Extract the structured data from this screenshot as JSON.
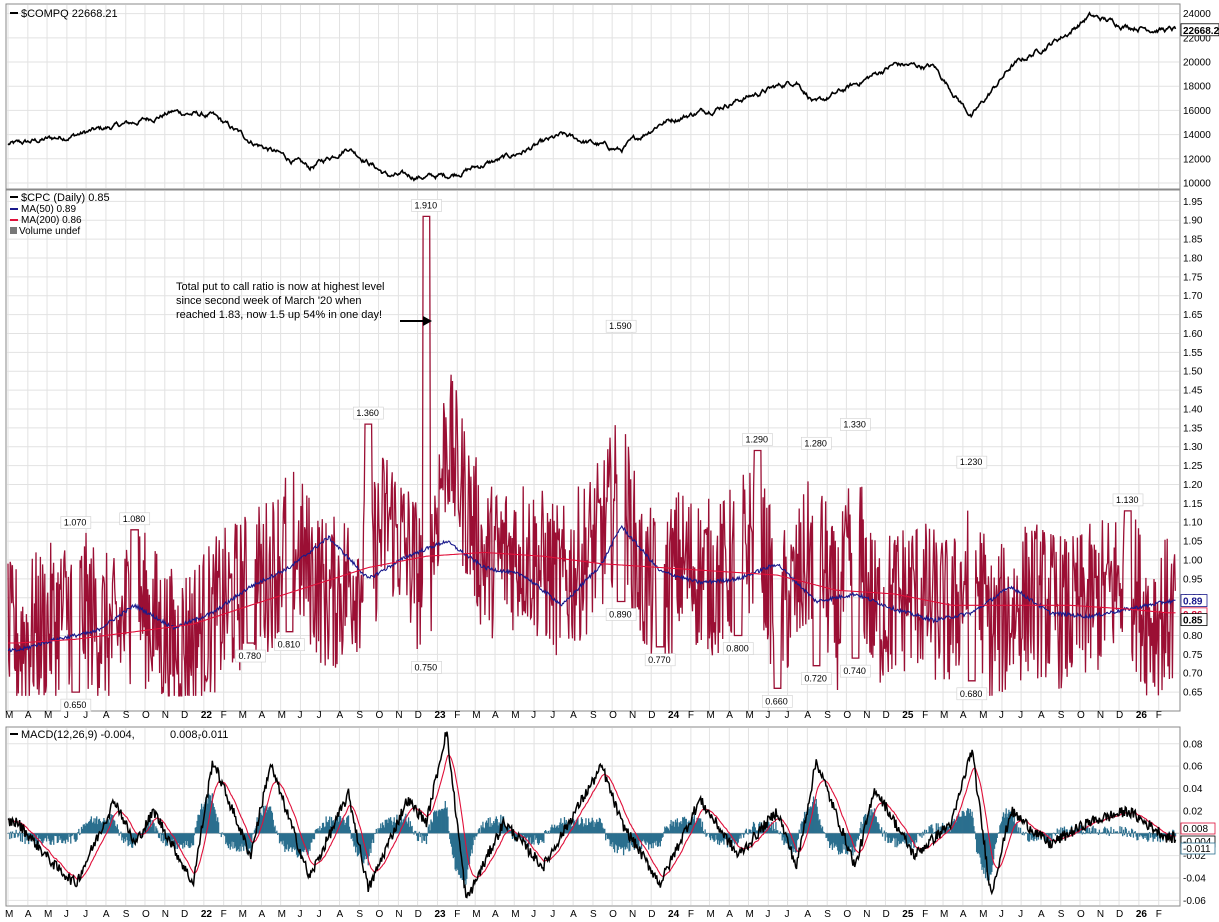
{
  "chart_data": [
    {
      "type": "line",
      "legend": "$COMPQ 22668.21",
      "last_value_label": "22668.2",
      "ylim": [
        9500,
        24800
      ],
      "y_ticks": [
        "10000",
        "12000",
        "14000",
        "16000",
        "18000",
        "20000",
        "22000",
        "24000"
      ],
      "series": [
        {
          "name": "$COMPQ",
          "x": [
            "2021-03",
            "2021-06",
            "2021-09",
            "2021-11",
            "2022-01",
            "2022-03",
            "2022-06",
            "2022-08",
            "2022-10",
            "2022-12",
            "2023-01",
            "2023-04",
            "2023-07",
            "2023-10",
            "2023-12",
            "2024-03",
            "2024-07",
            "2024-08",
            "2024-12",
            "2025-02",
            "2025-04",
            "2025-06",
            "2025-09",
            "2025-10",
            "2025-12",
            "2026-02"
          ],
          "values": [
            13200,
            14000,
            15000,
            15900,
            15500,
            13500,
            11200,
            13000,
            10600,
            10500,
            10600,
            12000,
            13900,
            12700,
            15000,
            16300,
            18500,
            16500,
            19800,
            19600,
            15500,
            19600,
            22500,
            23800,
            23000,
            22668
          ]
        }
      ]
    },
    {
      "type": "line",
      "legend": {
        "main": "$CPC (Daily) 0.85",
        "ma50": "MA(50) 0.89",
        "ma200": "MA(200) 0.86",
        "volume": "Volume undef"
      },
      "ylim": [
        0.6,
        1.98
      ],
      "y_ticks": [
        "1.95",
        "1.90",
        "1.85",
        "1.80",
        "1.75",
        "1.70",
        "1.65",
        "1.60",
        "1.55",
        "1.50",
        "1.45",
        "1.40",
        "1.35",
        "1.30",
        "1.25",
        "1.20",
        "1.15",
        "1.10",
        "1.05",
        "1.00",
        "0.95",
        "0.90",
        "0.85",
        "0.80",
        "0.75",
        "0.70",
        "0.65"
      ],
      "value_tags": {
        "ma50": "0.89",
        "ma200": "0.86",
        "last": "0.85"
      },
      "annotations": {
        "note": [
          "Total put to call ratio is now at highest level",
          "since second week of March '20 when",
          "reached 1.83, now 1.5 up 54% in one day!"
        ],
        "callouts": [
          {
            "label": "1.070",
            "x": "2021-06",
            "y": 1.07
          },
          {
            "label": "0.650",
            "x": "2021-06",
            "y": 0.65
          },
          {
            "label": "1.080",
            "x": "2021-09",
            "y": 1.08
          },
          {
            "label": "0.780",
            "x": "2022-03",
            "y": 0.78
          },
          {
            "label": "0.810",
            "x": "2022-05",
            "y": 0.81
          },
          {
            "label": "1.360",
            "x": "2022-09",
            "y": 1.36
          },
          {
            "label": "0.750",
            "x": "2022-12",
            "y": 0.75
          },
          {
            "label": "1.910",
            "x": "2022-12",
            "y": 1.91
          },
          {
            "label": "1.590",
            "x": "2023-10",
            "y": 1.59
          },
          {
            "label": "0.890",
            "x": "2023-10",
            "y": 0.89
          },
          {
            "label": "0.770",
            "x": "2023-12",
            "y": 0.77
          },
          {
            "label": "0.800",
            "x": "2024-04",
            "y": 0.8
          },
          {
            "label": "1.290",
            "x": "2024-05",
            "y": 1.29
          },
          {
            "label": "0.660",
            "x": "2024-06",
            "y": 0.66
          },
          {
            "label": "1.280",
            "x": "2024-08",
            "y": 1.28
          },
          {
            "label": "0.720",
            "x": "2024-08",
            "y": 0.72
          },
          {
            "label": "1.330",
            "x": "2024-10",
            "y": 1.33
          },
          {
            "label": "0.740",
            "x": "2024-10",
            "y": 0.74
          },
          {
            "label": "1.230",
            "x": "2025-04",
            "y": 1.23
          },
          {
            "label": "0.680",
            "x": "2025-04",
            "y": 0.68
          },
          {
            "label": "1.130",
            "x": "2025-12",
            "y": 1.13
          }
        ]
      },
      "series": [
        {
          "name": "$CPC",
          "x": [
            "2021-03",
            "2021-05",
            "2021-06",
            "2021-08",
            "2021-09",
            "2021-11",
            "2022-02",
            "2022-04",
            "2022-05",
            "2022-07",
            "2022-09",
            "2022-10",
            "2022-12",
            "2023-01",
            "2023-03",
            "2023-05",
            "2023-07",
            "2023-09",
            "2023-10",
            "2023-11",
            "2023-12",
            "2024-01",
            "2024-03",
            "2024-05",
            "2024-06",
            "2024-07",
            "2024-08",
            "2024-09",
            "2024-10",
            "2024-11",
            "2025-01",
            "2025-03",
            "2025-04",
            "2025-05",
            "2025-07",
            "2025-09",
            "2025-11",
            "2025-12",
            "2026-01",
            "2026-02"
          ],
          "values": [
            0.8,
            0.95,
            1.07,
            0.78,
            1.08,
            0.66,
            0.95,
            1.1,
            1.32,
            0.81,
            1.0,
            1.36,
            0.75,
            1.91,
            0.95,
            1.05,
            0.8,
            1.2,
            1.59,
            0.89,
            0.77,
            1.02,
            0.9,
            1.29,
            0.66,
            0.88,
            1.28,
            0.72,
            1.33,
            0.74,
            0.95,
            0.78,
            1.23,
            0.68,
            0.95,
            0.8,
            1.0,
            1.13,
            0.8,
            0.85
          ]
        },
        {
          "name": "MA(50)",
          "x": [
            "2021-03",
            "2021-05",
            "2021-07",
            "2021-09",
            "2021-11",
            "2022-01",
            "2022-03",
            "2022-05",
            "2022-07",
            "2022-09",
            "2022-11",
            "2023-01",
            "2023-03",
            "2023-05",
            "2023-07",
            "2023-09",
            "2023-10",
            "2023-12",
            "2024-02",
            "2024-04",
            "2024-06",
            "2024-08",
            "2024-10",
            "2024-12",
            "2025-02",
            "2025-04",
            "2025-06",
            "2025-08",
            "2025-10",
            "2025-12",
            "2026-02"
          ],
          "values": [
            0.76,
            0.79,
            0.81,
            0.88,
            0.82,
            0.86,
            0.93,
            0.98,
            1.06,
            0.95,
            1.01,
            1.05,
            0.98,
            0.96,
            0.88,
            0.99,
            1.09,
            0.97,
            0.94,
            0.95,
            0.99,
            0.89,
            0.91,
            0.87,
            0.84,
            0.86,
            0.93,
            0.86,
            0.85,
            0.87,
            0.89
          ]
        },
        {
          "name": "MA(200)",
          "x": [
            "2021-03",
            "2021-06",
            "2021-09",
            "2021-12",
            "2022-03",
            "2022-06",
            "2022-09",
            "2022-12",
            "2023-03",
            "2023-06",
            "2023-09",
            "2023-12",
            "2024-03",
            "2024-06",
            "2024-09",
            "2024-12",
            "2025-03",
            "2025-06",
            "2025-09",
            "2025-12",
            "2026-02"
          ],
          "values": [
            0.78,
            0.79,
            0.81,
            0.83,
            0.88,
            0.93,
            0.98,
            1.01,
            1.02,
            1.01,
            0.99,
            0.98,
            0.97,
            0.96,
            0.92,
            0.91,
            0.88,
            0.88,
            0.88,
            0.87,
            0.86
          ]
        }
      ]
    },
    {
      "type": "line",
      "legend": {
        "prefix": "MACD(12,26,9)",
        "macd": "-0.004,",
        "signal": "0.008,",
        "hist": "-0.011"
      },
      "ylim": [
        -0.065,
        0.095
      ],
      "y_ticks": [
        "0.08",
        "0.06",
        "0.04",
        "0.02",
        "-0.02",
        "-0.04",
        "-0.06"
      ],
      "value_tags": {
        "signal": "0.008",
        "macd": "-0.004",
        "hist": "-0.011"
      },
      "series": [
        {
          "name": "MACD",
          "x": [
            "2021-03",
            "2021-05",
            "2021-06",
            "2021-08",
            "2021-09",
            "2021-10",
            "2021-12",
            "2022-01",
            "2022-03",
            "2022-04",
            "2022-06",
            "2022-08",
            "2022-09",
            "2022-11",
            "2022-12",
            "2023-01",
            "2023-02",
            "2023-04",
            "2023-06",
            "2023-08",
            "2023-09",
            "2023-10",
            "2023-12",
            "2024-02",
            "2024-04",
            "2024-06",
            "2024-07",
            "2024-08",
            "2024-10",
            "2024-11",
            "2025-01",
            "2025-03",
            "2025-04",
            "2025-05",
            "2025-06",
            "2025-08",
            "2025-10",
            "2025-12",
            "2026-02"
          ],
          "values": [
            0.01,
            -0.03,
            -0.045,
            0.03,
            -0.01,
            0.02,
            -0.045,
            0.065,
            -0.02,
            0.062,
            -0.04,
            0.035,
            -0.05,
            0.03,
            0.01,
            0.092,
            -0.06,
            0.01,
            -0.03,
            0.03,
            0.06,
            0.01,
            -0.045,
            0.03,
            -0.02,
            0.02,
            -0.03,
            0.065,
            -0.03,
            0.04,
            -0.02,
            0.01,
            0.075,
            -0.055,
            0.02,
            -0.01,
            0.01,
            0.02,
            -0.004
          ]
        },
        {
          "name": "Signal",
          "x": [
            "2021-03",
            "2021-06",
            "2021-09",
            "2021-12",
            "2022-02",
            "2022-04",
            "2022-07",
            "2022-10",
            "2023-01",
            "2023-03",
            "2023-06",
            "2023-09",
            "2023-12",
            "2024-03",
            "2024-06",
            "2024-08",
            "2024-11",
            "2025-02",
            "2025-04",
            "2025-06",
            "2025-09",
            "2025-12",
            "2026-02"
          ],
          "values": [
            0.005,
            -0.03,
            0.015,
            -0.035,
            0.045,
            0.04,
            0.0,
            -0.035,
            0.07,
            -0.05,
            -0.02,
            0.045,
            -0.035,
            0.0,
            0.01,
            0.05,
            0.0,
            -0.005,
            0.055,
            -0.04,
            0.0,
            0.01,
            0.008
          ]
        }
      ]
    }
  ],
  "x_axis": {
    "labels": [
      {
        "t": "M",
        "m": "2021-03"
      },
      {
        "t": "A",
        "m": "2021-04"
      },
      {
        "t": "M",
        "m": "2021-05"
      },
      {
        "t": "J",
        "m": "2021-06"
      },
      {
        "t": "J",
        "m": "2021-07"
      },
      {
        "t": "A",
        "m": "2021-08"
      },
      {
        "t": "S",
        "m": "2021-09"
      },
      {
        "t": "O",
        "m": "2021-10"
      },
      {
        "t": "N",
        "m": "2021-11"
      },
      {
        "t": "D",
        "m": "2021-12"
      },
      {
        "t": "22",
        "m": "2022-01",
        "year": true
      },
      {
        "t": "F",
        "m": "2022-02"
      },
      {
        "t": "M",
        "m": "2022-03"
      },
      {
        "t": "A",
        "m": "2022-04"
      },
      {
        "t": "M",
        "m": "2022-05"
      },
      {
        "t": "J",
        "m": "2022-06"
      },
      {
        "t": "J",
        "m": "2022-07"
      },
      {
        "t": "A",
        "m": "2022-08"
      },
      {
        "t": "S",
        "m": "2022-09"
      },
      {
        "t": "O",
        "m": "2022-10"
      },
      {
        "t": "N",
        "m": "2022-11"
      },
      {
        "t": "D",
        "m": "2022-12"
      },
      {
        "t": "23",
        "m": "2023-01",
        "year": true
      },
      {
        "t": "F",
        "m": "2023-02"
      },
      {
        "t": "M",
        "m": "2023-03"
      },
      {
        "t": "A",
        "m": "2023-04"
      },
      {
        "t": "M",
        "m": "2023-05"
      },
      {
        "t": "J",
        "m": "2023-06"
      },
      {
        "t": "J",
        "m": "2023-07"
      },
      {
        "t": "A",
        "m": "2023-08"
      },
      {
        "t": "S",
        "m": "2023-09"
      },
      {
        "t": "O",
        "m": "2023-10"
      },
      {
        "t": "N",
        "m": "2023-11"
      },
      {
        "t": "D",
        "m": "2023-12"
      },
      {
        "t": "24",
        "m": "2024-01",
        "year": true
      },
      {
        "t": "F",
        "m": "2024-02"
      },
      {
        "t": "M",
        "m": "2024-03"
      },
      {
        "t": "A",
        "m": "2024-04"
      },
      {
        "t": "M",
        "m": "2024-05"
      },
      {
        "t": "J",
        "m": "2024-06"
      },
      {
        "t": "J",
        "m": "2024-07"
      },
      {
        "t": "A",
        "m": "2024-08"
      },
      {
        "t": "S",
        "m": "2024-09"
      },
      {
        "t": "O",
        "m": "2024-10"
      },
      {
        "t": "N",
        "m": "2024-11"
      },
      {
        "t": "D",
        "m": "2024-12"
      },
      {
        "t": "25",
        "m": "2025-01",
        "year": true
      },
      {
        "t": "F",
        "m": "2025-02"
      },
      {
        "t": "M",
        "m": "2025-03"
      },
      {
        "t": "A",
        "m": "2025-04"
      },
      {
        "t": "M",
        "m": "2025-05"
      },
      {
        "t": "J",
        "m": "2025-06"
      },
      {
        "t": "J",
        "m": "2025-07"
      },
      {
        "t": "A",
        "m": "2025-08"
      },
      {
        "t": "S",
        "m": "2025-09"
      },
      {
        "t": "O",
        "m": "2025-10"
      },
      {
        "t": "N",
        "m": "2025-11"
      },
      {
        "t": "D",
        "m": "2025-12"
      },
      {
        "t": "26",
        "m": "2026-01",
        "year": true
      },
      {
        "t": "F",
        "m": "2026-02"
      }
    ]
  },
  "colors": {
    "price": "#000000",
    "cpc": "#9b0f34",
    "cpc_dark": "#000000",
    "ma50": "#1a1a8c",
    "ma200": "#e0103a",
    "macd": "#000000",
    "signal": "#e0103a",
    "hist": "#2b6f8e",
    "grid": "#e2e2e2"
  }
}
